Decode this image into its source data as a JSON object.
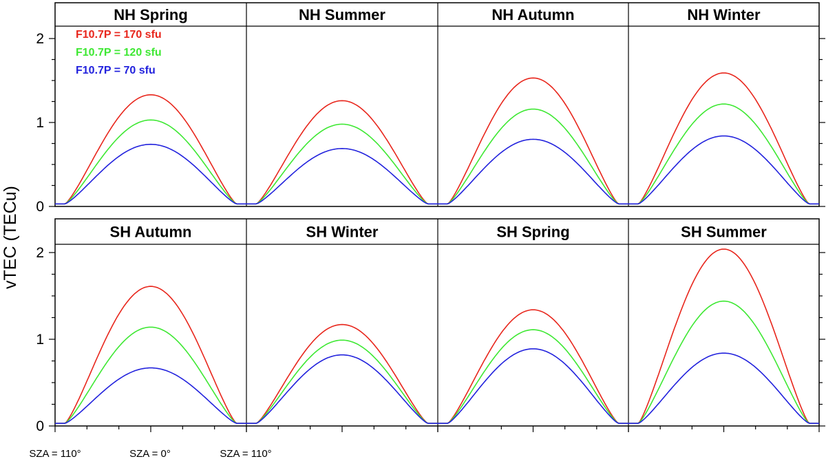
{
  "chart_data": {
    "type": "line",
    "ylabel": "vTEC (TECu)",
    "y_ticks": [
      "0",
      "1",
      "2"
    ],
    "ylim": [
      0,
      2.1
    ],
    "x_labels": [
      "SZA = 110°",
      "SZA = 0°",
      "SZA = 110°"
    ],
    "legend": [
      {
        "label": "F10.7P = 170 sfu",
        "color": "#e8261c"
      },
      {
        "label": "F10.7P = 120 sfu",
        "color": "#3ee833"
      },
      {
        "label": "F10.7P = 70 sfu",
        "color": "#2222dd"
      }
    ],
    "series_floor": 0.03,
    "panels": [
      {
        "title": "NH Spring",
        "peaks": [
          1.33,
          1.03,
          0.74
        ]
      },
      {
        "title": "NH Summer",
        "peaks": [
          1.26,
          0.98,
          0.69
        ]
      },
      {
        "title": "NH Autumn",
        "peaks": [
          1.53,
          1.16,
          0.8
        ]
      },
      {
        "title": "NH Winter",
        "peaks": [
          1.59,
          1.22,
          0.84
        ]
      },
      {
        "title": "SH Autumn",
        "peaks": [
          1.61,
          1.14,
          0.67
        ]
      },
      {
        "title": "SH Winter",
        "peaks": [
          1.17,
          0.99,
          0.82
        ]
      },
      {
        "title": "SH Spring",
        "peaks": [
          1.34,
          1.11,
          0.89
        ]
      },
      {
        "title": "SH Summer",
        "peaks": [
          2.04,
          1.44,
          0.84
        ]
      }
    ]
  }
}
